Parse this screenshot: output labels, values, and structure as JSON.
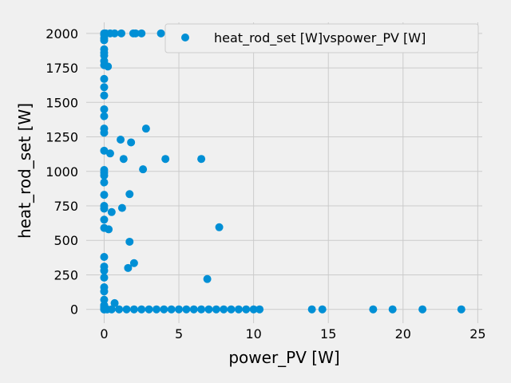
{
  "chart_data": {
    "type": "scatter",
    "title": "",
    "xlabel": "power_PV [W]",
    "ylabel": "heat_rod_set [W]",
    "xlim": [
      -1.2,
      25.3
    ],
    "ylim": [
      -100,
      2080
    ],
    "xticks": [
      0,
      5,
      10,
      15,
      20,
      25
    ],
    "yticks": [
      0,
      250,
      500,
      750,
      1000,
      1250,
      1500,
      1750,
      2000
    ],
    "grid": true,
    "legend_position": "top-right",
    "colors": {
      "background": "#f0f0f0",
      "marker": "#008fd5",
      "grid": "#cbcbcb"
    },
    "series": [
      {
        "name": "heat_rod_set [W]vspower_PV [W]",
        "x": [
          0,
          0.05,
          0.1,
          0.4,
          0.7,
          1.15,
          1.95,
          2.1,
          2.5,
          3.8,
          0,
          0,
          0,
          0,
          0,
          0,
          0,
          0,
          0.25,
          0,
          0,
          0,
          0,
          0,
          0,
          0,
          0,
          0,
          0,
          0,
          0,
          0,
          0,
          0,
          0,
          0,
          0,
          0,
          0,
          0,
          0,
          0,
          0,
          0,
          0,
          0,
          0,
          0,
          0,
          2.8,
          1.1,
          1.8,
          0.4,
          1.3,
          2.6,
          4.1,
          6.5,
          1.7,
          1.2,
          0.5,
          0.3,
          7.7,
          1.7,
          2.0,
          1.6,
          6.9,
          0.7,
          0.2,
          0.5,
          1.0,
          1.5,
          2.0,
          2.5,
          3.0,
          3.5,
          4.0,
          4.5,
          5.0,
          5.5,
          6.0,
          6.5,
          7.0,
          7.5,
          8.0,
          8.5,
          9.0,
          9.5,
          10.0,
          10.4,
          13.9,
          14.6,
          18.0,
          19.3,
          21.3,
          23.9
        ],
        "y": [
          2000,
          2000,
          2000,
          2000,
          2000,
          2000,
          2000,
          2000,
          2000,
          2000,
          1990,
          1965,
          1950,
          1885,
          1860,
          1840,
          1800,
          1770,
          1760,
          1670,
          1610,
          1550,
          1450,
          1400,
          1310,
          1280,
          1150,
          1010,
          990,
          970,
          920,
          830,
          750,
          730,
          650,
          590,
          380,
          310,
          280,
          230,
          160,
          130,
          70,
          30,
          20,
          10,
          5,
          0,
          0,
          1310,
          1230,
          1210,
          1130,
          1090,
          1015,
          1090,
          1090,
          835,
          735,
          705,
          580,
          595,
          490,
          335,
          300,
          220,
          45,
          0,
          0,
          0,
          0,
          0,
          0,
          0,
          0,
          0,
          0,
          0,
          0,
          0,
          0,
          0,
          0,
          0,
          0,
          0,
          0,
          0,
          0,
          0,
          0,
          0,
          0,
          0,
          0
        ]
      }
    ]
  }
}
